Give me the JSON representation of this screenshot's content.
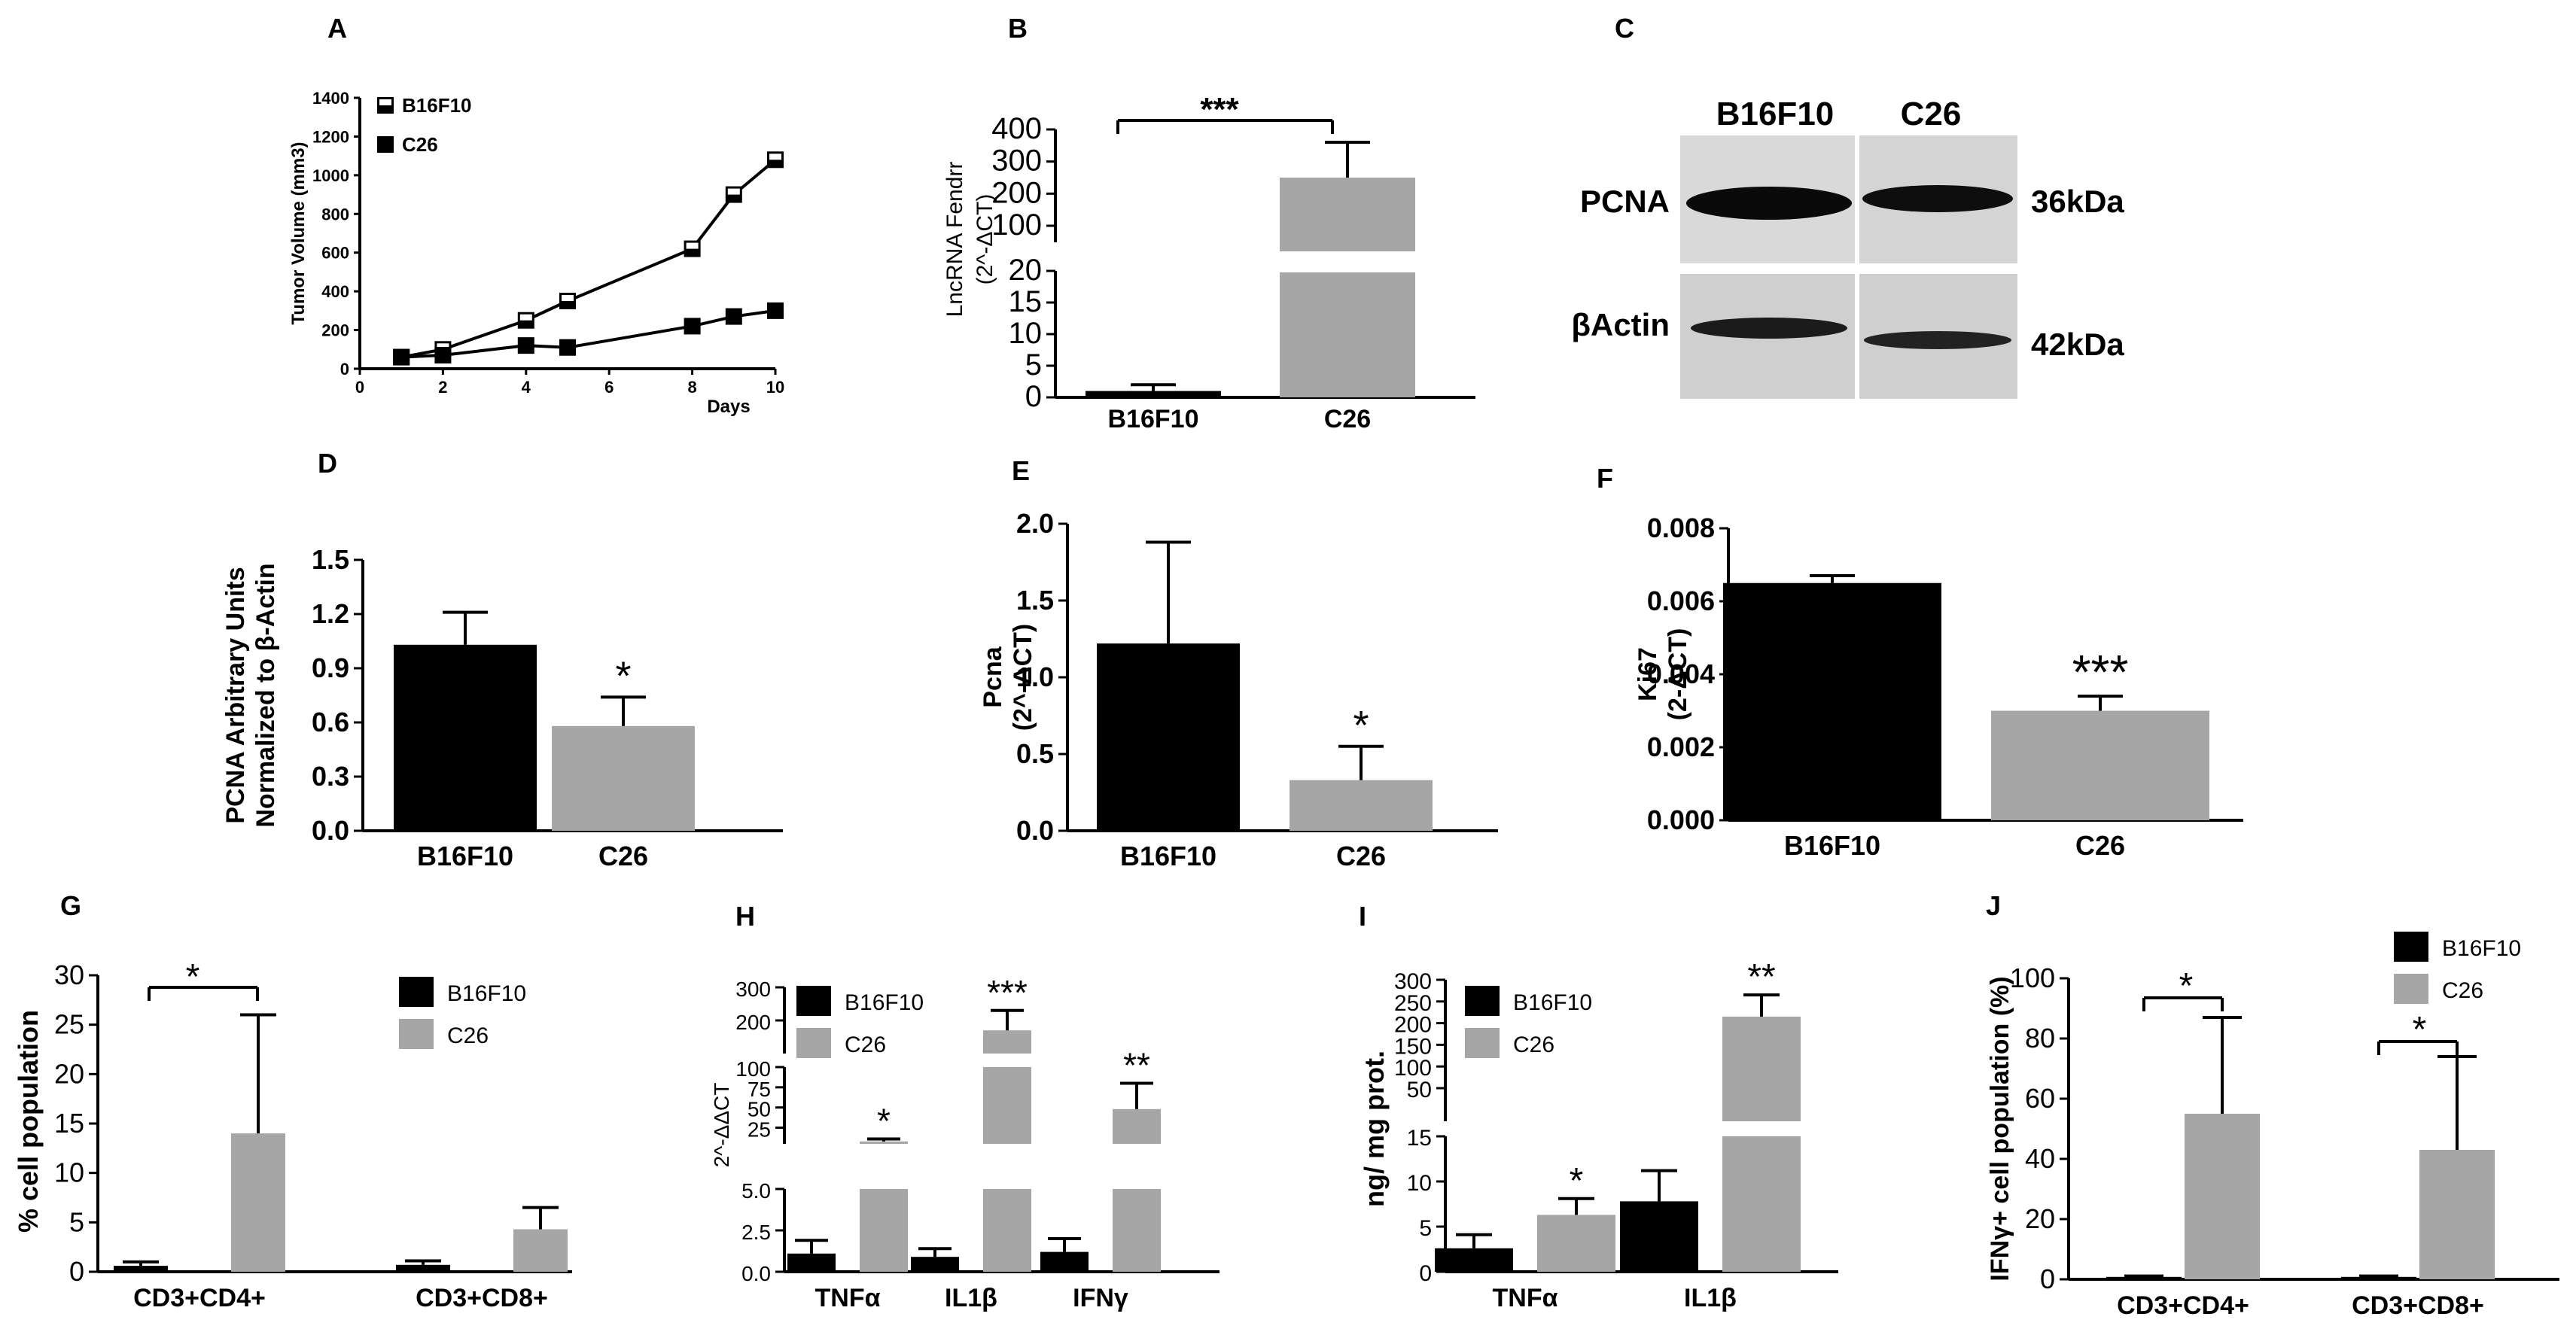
{
  "colors": {
    "black": "#000000",
    "gray": "#a6a6a6",
    "white": "#ffffff"
  },
  "panel_labels": [
    "A",
    "B",
    "C",
    "D",
    "E",
    "F",
    "G",
    "H",
    "I",
    "J"
  ],
  "western_blot": {
    "lanes": [
      "B16F10",
      "C26"
    ],
    "bands": [
      {
        "protein": "PCNA",
        "size": "36kDa"
      },
      {
        "protein": "βActin",
        "size": "42kDa"
      }
    ]
  },
  "chart_data": [
    {
      "panel": "A",
      "type": "line",
      "x": [
        1,
        2,
        4,
        5,
        8,
        9,
        10
      ],
      "series": [
        {
          "name": "B16F10",
          "marker": "half-filled square",
          "values": [
            60,
            100,
            250,
            350,
            620,
            900,
            1080
          ]
        },
        {
          "name": "C26",
          "marker": "filled square",
          "values": [
            60,
            70,
            120,
            110,
            220,
            270,
            300
          ]
        }
      ],
      "xlabel": "Days",
      "ylabel": "Tumor Volume (mm3)",
      "xlim": [
        0,
        10
      ],
      "ylim": [
        0,
        1400
      ],
      "xticks": [
        "0",
        "2",
        "4",
        "6",
        "8",
        "10"
      ],
      "yticks": [
        "0",
        "200",
        "400",
        "600",
        "800",
        "1000",
        "1200",
        "1400"
      ],
      "legend": "top-left"
    },
    {
      "panel": "B",
      "type": "bar",
      "categories": [
        "B16F10",
        "C26"
      ],
      "values": [
        1,
        250
      ],
      "errors": [
        1,
        110
      ],
      "colors": [
        "#000000",
        "#a6a6a6"
      ],
      "ylabel": "LncRNA Fendrr (2^-ΔCT)",
      "broken_axis": {
        "lower": [
          0,
          20
        ],
        "upper": [
          20,
          400
        ]
      },
      "yticks_lower": [
        "0",
        "5",
        "10",
        "15",
        "20"
      ],
      "yticks_upper": [
        "100",
        "200",
        "300",
        "400"
      ],
      "significance": [
        {
          "text": "***",
          "between": [
            "B16F10",
            "C26"
          ]
        }
      ]
    },
    {
      "panel": "D",
      "type": "bar",
      "categories": [
        "B16F10",
        "C26"
      ],
      "values": [
        1.03,
        0.58
      ],
      "errors": [
        0.18,
        0.16
      ],
      "colors": [
        "#000000",
        "#a6a6a6"
      ],
      "ylabel": [
        "PCNA Arbitrary Units",
        "Normalized to β-Actin"
      ],
      "ylim": [
        0,
        1.5
      ],
      "yticks": [
        "0.0",
        "0.3",
        "0.6",
        "0.9",
        "1.2",
        "1.5"
      ],
      "significance": [
        {
          "text": "*",
          "over": "C26"
        }
      ]
    },
    {
      "panel": "E",
      "type": "bar",
      "categories": [
        "B16F10",
        "C26"
      ],
      "values": [
        1.22,
        0.33
      ],
      "errors": [
        0.66,
        0.22
      ],
      "colors": [
        "#000000",
        "#a6a6a6"
      ],
      "ylabel": [
        "Pcna",
        "(2^-ΔCT)"
      ],
      "ylim": [
        0,
        2.0
      ],
      "yticks": [
        "0.0",
        "0.5",
        "1.0",
        "1.5",
        "2.0"
      ],
      "significance": [
        {
          "text": "*",
          "over": "C26"
        }
      ]
    },
    {
      "panel": "F",
      "type": "bar",
      "categories": [
        "B16F10",
        "C26"
      ],
      "values": [
        0.0065,
        0.003
      ],
      "errors": [
        0.0002,
        0.0004
      ],
      "colors": [
        "#000000",
        "#a6a6a6"
      ],
      "ylabel": [
        "Ki67",
        "(2-ΔCT)"
      ],
      "ylim": [
        0,
        0.008
      ],
      "yticks": [
        "0.000",
        "0.002",
        "0.004",
        "0.006",
        "0.008"
      ],
      "significance": [
        {
          "text": "***",
          "over": "C26"
        }
      ]
    },
    {
      "panel": "G",
      "type": "bar",
      "categories": [
        "CD3+CD4+",
        "CD3+CD8+"
      ],
      "series": [
        {
          "name": "B16F10",
          "values": [
            0.6,
            0.7
          ],
          "errors": [
            0.4,
            0.4
          ]
        },
        {
          "name": "C26",
          "values": [
            14,
            4.3
          ],
          "errors": [
            12,
            2.2
          ]
        }
      ],
      "ylabel": "% cell population",
      "ylim": [
        0,
        30
      ],
      "yticks": [
        "0",
        "5",
        "10",
        "15",
        "20",
        "25",
        "30"
      ],
      "legend": "top-right",
      "significance": [
        {
          "text": "*",
          "between": [
            "B16F10",
            "C26"
          ],
          "category": "CD3+CD4+"
        }
      ]
    },
    {
      "panel": "H",
      "type": "bar",
      "categories": [
        "TNFα",
        "IL1β",
        "IFNγ"
      ],
      "series": [
        {
          "name": "B16F10",
          "values": [
            1.1,
            0.9,
            1.2
          ],
          "errors": [
            0.8,
            0.5,
            0.8
          ]
        },
        {
          "name": "C26",
          "values": [
            8,
            170,
            48
          ],
          "errors": [
            3,
            60,
            32
          ]
        }
      ],
      "ylabel": "2^-ΔΔCT",
      "broken_axis": {
        "lower": [
          0,
          5
        ],
        "middle": [
          5,
          100
        ],
        "upper": [
          100,
          300
        ]
      },
      "yticks_lower": [
        "0.0",
        "2.5",
        "5.0"
      ],
      "yticks_middle": [
        "25",
        "50",
        "75",
        "100"
      ],
      "yticks_upper": [
        "200",
        "300"
      ],
      "legend": "top-left",
      "significance": [
        {
          "text": "*",
          "over": "TNFα"
        },
        {
          "text": "***",
          "over": "IL1β"
        },
        {
          "text": "**",
          "over": "IFNγ"
        }
      ]
    },
    {
      "panel": "I",
      "type": "bar",
      "categories": [
        "TNFα",
        "IL1β"
      ],
      "series": [
        {
          "name": "B16F10",
          "values": [
            2.6,
            7.8
          ],
          "errors": [
            1.5,
            3.4
          ]
        },
        {
          "name": "C26",
          "values": [
            6.3,
            215
          ],
          "errors": [
            1.8,
            50
          ]
        }
      ],
      "ylabel": "ng/ mg prot.",
      "broken_axis": {
        "lower": [
          0,
          15
        ],
        "upper": [
          15,
          300
        ]
      },
      "yticks_lower": [
        "0",
        "5",
        "10",
        "15"
      ],
      "yticks_upper": [
        "50",
        "100",
        "150",
        "200",
        "250",
        "300"
      ],
      "legend": "top-left",
      "significance": [
        {
          "text": "*",
          "over": "TNFα"
        },
        {
          "text": "**",
          "over": "IL1β"
        }
      ]
    },
    {
      "panel": "J",
      "type": "bar",
      "categories": [
        "CD3+CD4+",
        "CD3+CD8+"
      ],
      "series": [
        {
          "name": "B16F10",
          "values": [
            0.8,
            0.8
          ],
          "errors": [
            0.3,
            0.3
          ]
        },
        {
          "name": "C26",
          "values": [
            55,
            43
          ],
          "errors": [
            32,
            31
          ]
        }
      ],
      "ylabel": "IFNγ+ cell population (%)",
      "ylim": [
        0,
        100
      ],
      "yticks": [
        "0",
        "20",
        "40",
        "60",
        "80",
        "100"
      ],
      "legend": "top-right",
      "significance": [
        {
          "text": "*",
          "category": "CD3+CD4+"
        },
        {
          "text": "*",
          "category": "CD3+CD8+"
        }
      ]
    }
  ]
}
